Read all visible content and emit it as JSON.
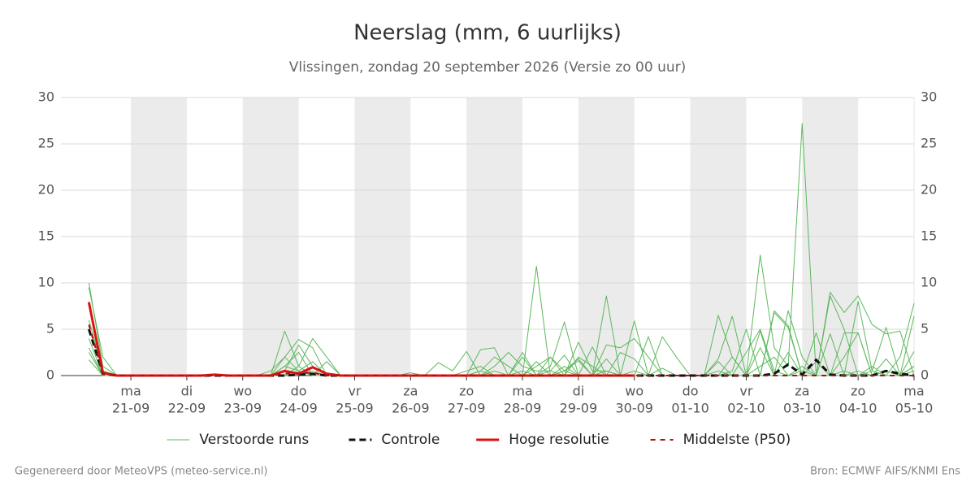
{
  "chart_data": {
    "type": "line",
    "title": "Neerslag (mm, 6 uurlijks)",
    "subtitle": "Vlissingen, zondag 20 september 2026 (Versie zo 00 uur)",
    "footer_left": "Gegenereerd door MeteoVPS (meteo-service.nl)",
    "footer_right": "Bron: ECMWF AIFS/KNMI Ens",
    "xlim": [
      -6,
      360
    ],
    "xticks": [
      {
        "value": 24,
        "label": "21-09"
      },
      {
        "value": 48,
        "label": "22-09"
      },
      {
        "value": 72,
        "label": "23-09"
      },
      {
        "value": 96,
        "label": "24-09"
      },
      {
        "value": 120,
        "label": "25-09"
      },
      {
        "value": 144,
        "label": "26-09"
      },
      {
        "value": 168,
        "label": "27-09"
      },
      {
        "value": 192,
        "label": "28-09"
      },
      {
        "value": 216,
        "label": "29-09"
      },
      {
        "value": 240,
        "label": "30-09"
      },
      {
        "value": 264,
        "label": "01-10"
      },
      {
        "value": 288,
        "label": "02-10"
      },
      {
        "value": 312,
        "label": "03-10"
      },
      {
        "value": 336,
        "label": "04-10"
      },
      {
        "value": 360,
        "label": "05-10"
      }
    ],
    "xtick_days": [
      "ma",
      "di",
      "wo",
      "do",
      "vr",
      "za",
      "zo",
      "ma",
      "di",
      "wo",
      "do",
      "vr",
      "za",
      "zo",
      "ma"
    ],
    "ylim": [
      0,
      30
    ],
    "yticks": [
      0,
      5,
      10,
      15,
      20,
      25,
      30
    ],
    "grid": true,
    "x": [
      6,
      12,
      18,
      24,
      30,
      36,
      42,
      48,
      54,
      60,
      66,
      72,
      78,
      84,
      90,
      96,
      102,
      108,
      114,
      120,
      126,
      132,
      138,
      144,
      150,
      156,
      162,
      168,
      174,
      180,
      186,
      192,
      198,
      204,
      210,
      216,
      222,
      228,
      234,
      240,
      246,
      252,
      258,
      264,
      270,
      276,
      282,
      288,
      294,
      300,
      306,
      312,
      318,
      324,
      330,
      336,
      342,
      348,
      354,
      360
    ],
    "series": [
      {
        "name": "Verstoorde runs",
        "color": "#5cb85c",
        "members": [
          [
            10,
            1,
            0,
            0,
            0,
            0,
            0,
            0,
            0,
            0,
            0,
            0,
            0,
            0,
            4.8,
            1,
            0,
            0,
            0,
            0,
            0,
            0,
            0,
            0,
            0,
            0,
            0,
            0,
            2.8,
            3,
            0,
            0,
            11.8,
            0,
            0.5,
            0,
            0,
            8.6,
            0,
            0,
            0,
            0,
            0,
            0,
            0,
            0,
            0,
            0,
            13,
            3,
            1,
            27.2,
            0,
            0,
            4.6,
            4.6,
            0,
            0,
            0,
            1
          ],
          [
            8,
            0.5,
            0,
            0,
            0,
            0,
            0,
            0,
            0,
            0,
            0,
            0,
            0,
            0.5,
            2,
            3.9,
            3,
            0,
            0,
            0,
            0,
            0,
            0,
            0,
            0,
            1.4,
            0.5,
            2.6,
            0,
            0,
            0,
            2.5,
            0,
            1,
            5.8,
            0,
            0,
            3.3,
            3,
            4,
            2,
            0,
            0,
            0,
            0,
            6.5,
            2,
            0,
            0,
            7,
            5.4,
            0,
            0,
            9,
            6.8,
            8.6,
            5.5,
            4.5,
            4.8,
            0
          ],
          [
            9.5,
            2,
            0,
            0,
            0,
            0,
            0,
            0,
            0,
            0,
            0,
            0,
            0,
            0,
            0,
            1,
            4,
            2,
            0,
            0,
            0,
            0,
            0,
            0,
            0,
            0,
            0,
            0,
            0.5,
            2,
            1,
            0,
            1,
            2,
            0,
            3.6,
            0.5,
            0.5,
            0,
            5.9,
            0,
            4.2,
            2,
            0,
            0,
            0,
            0,
            0,
            3,
            0,
            7,
            2,
            0,
            8.6,
            5,
            0,
            0,
            0,
            0,
            6.4
          ],
          [
            6,
            0.5,
            0,
            0,
            0,
            0,
            0,
            0,
            0,
            0,
            0,
            0,
            0,
            0,
            1,
            2.5,
            0,
            1.5,
            0,
            0,
            0,
            0,
            0,
            0,
            0,
            0,
            0,
            0,
            0,
            1,
            2.5,
            1,
            0.5,
            0.5,
            0,
            2,
            1,
            0,
            2.5,
            1.8,
            0,
            0,
            0,
            0,
            0,
            0,
            2,
            0,
            0,
            6.8,
            5.2,
            0,
            0,
            4.5,
            0,
            8,
            0.5,
            0,
            2,
            7.8
          ],
          [
            4,
            0,
            0,
            0,
            0,
            0,
            0,
            0,
            0,
            0,
            0,
            0,
            0,
            0,
            2,
            0.5,
            1.5,
            0,
            0,
            0,
            0,
            0,
            0,
            0.3,
            0,
            0,
            0,
            0.5,
            1,
            0,
            0,
            0,
            1.5,
            0,
            1,
            0,
            3.1,
            0,
            0,
            0,
            4.2,
            0,
            0,
            0,
            0,
            0,
            0.5,
            5,
            0,
            0,
            2.5,
            0,
            4.6,
            0,
            2,
            4.6,
            0,
            1.8,
            0,
            2.6
          ],
          [
            3,
            0,
            0,
            0,
            0,
            0,
            0,
            0,
            0,
            0,
            0,
            0,
            0,
            0,
            0.5,
            3.3,
            1,
            0,
            0,
            0,
            0,
            0,
            0,
            0,
            0,
            0,
            0,
            0,
            0.5,
            0,
            0,
            2,
            0,
            0.5,
            2.2,
            0,
            0,
            1.8,
            0,
            0,
            0,
            0,
            0,
            0,
            0,
            1.8,
            6.4,
            0,
            4.8,
            0,
            0,
            0,
            1.5,
            0,
            0,
            0,
            0.5,
            5.2,
            0,
            0.5
          ],
          [
            2.5,
            0,
            0,
            0,
            0,
            0,
            0,
            0,
            0,
            0,
            0,
            0,
            0,
            0,
            1,
            0.5,
            0,
            0,
            0,
            0,
            0,
            0,
            0,
            0,
            0,
            0,
            0,
            0,
            0,
            0.5,
            0,
            0,
            0,
            0,
            0.5,
            1.6,
            0,
            0.5,
            0,
            0.5,
            0,
            0,
            0,
            0,
            0,
            0.5,
            0,
            0,
            1,
            2,
            0,
            0.5,
            0,
            0,
            0.5,
            0,
            1,
            0,
            0,
            1
          ],
          [
            1.7,
            0,
            0,
            0,
            0,
            0,
            0,
            0,
            0,
            0,
            0,
            0,
            0,
            0,
            0,
            0.2,
            0.5,
            0,
            0,
            0,
            0,
            0,
            0,
            0,
            0,
            0,
            0,
            0,
            0,
            0,
            0,
            0.5,
            0,
            2,
            0.5,
            1.8,
            0,
            0,
            0,
            0,
            0,
            0.8,
            0,
            0,
            0,
            1.5,
            0,
            2.5,
            5,
            0.5,
            0,
            1,
            0,
            0,
            0,
            0.5,
            0,
            0.5,
            0,
            0
          ]
        ]
      },
      {
        "name": "Controle",
        "color": "#111111",
        "dash": "8,5",
        "width": 3,
        "values": [
          5,
          0.2,
          0,
          0,
          0,
          0,
          0,
          0,
          0,
          0,
          0,
          0,
          0,
          0,
          0,
          0.1,
          0.2,
          0,
          0,
          0,
          0,
          0,
          0,
          0,
          0,
          0,
          0,
          0,
          0,
          0,
          0,
          0,
          0,
          0,
          0,
          0,
          0,
          0,
          0,
          0,
          0,
          0,
          0,
          0,
          0,
          0,
          0,
          0,
          0,
          0.2,
          1.2,
          0.1,
          1.7,
          0.1,
          0,
          0,
          0,
          0.5,
          0.2,
          0
        ]
      },
      {
        "name": "Hoge resolutie",
        "color": "#dd1111",
        "width": 3,
        "values": [
          7.9,
          0.3,
          0,
          0,
          0,
          0,
          0,
          0,
          0,
          0.1,
          0,
          0,
          0,
          0,
          0.5,
          0.2,
          0.9,
          0.2,
          0,
          0,
          0,
          0,
          0,
          0,
          0,
          0,
          0,
          0,
          0,
          0,
          0,
          0,
          0,
          0,
          0,
          0,
          0,
          0,
          0,
          0,
          null,
          null,
          null,
          null,
          null,
          null,
          null,
          null,
          null,
          null,
          null,
          null,
          null,
          null,
          null,
          null,
          null,
          null,
          null,
          null
        ]
      },
      {
        "name": "Middelste (P50)",
        "color": "#aa1111",
        "dash": "6,6",
        "width": 2,
        "values": [
          5.5,
          0.2,
          0,
          0,
          0,
          0,
          0,
          0,
          0,
          0,
          0,
          0,
          0,
          0,
          0.2,
          0.3,
          0.3,
          0,
          0,
          0,
          0,
          0,
          0,
          0,
          0,
          0,
          0,
          0,
          0,
          0,
          0,
          0,
          0,
          0,
          0,
          0,
          0,
          0,
          0,
          0,
          0,
          0,
          0,
          0,
          0,
          0,
          0,
          0,
          0,
          0,
          0,
          0,
          0,
          0,
          0,
          0,
          0,
          0,
          0,
          0
        ]
      }
    ]
  }
}
